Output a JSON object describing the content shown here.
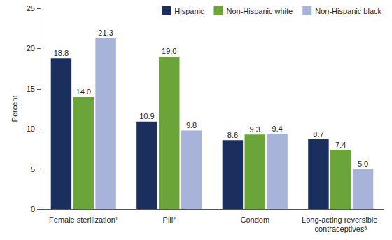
{
  "chart_data": {
    "type": "bar",
    "categories": [
      "Female sterilization¹",
      "Pill²",
      "Condom",
      "Long-acting reversible contraceptives³"
    ],
    "series": [
      {
        "name": "Hispanic",
        "color": "#1b2f5e",
        "values": [
          18.8,
          10.9,
          8.6,
          8.7
        ],
        "value_labels": [
          "18.8",
          "10.9",
          "8.6",
          "8.7"
        ]
      },
      {
        "name": "Non-Hispanic white",
        "color": "#6ba539",
        "values": [
          14.0,
          19.0,
          9.3,
          7.4
        ],
        "value_labels": [
          "14.0",
          "19.0",
          "9.3",
          "7.4"
        ]
      },
      {
        "name": "Non-Hispanic black",
        "color": "#a8b3da",
        "values": [
          21.3,
          9.8,
          9.4,
          5.0
        ],
        "value_labels": [
          "21.3",
          "9.8",
          "9.4",
          "5.0"
        ]
      }
    ],
    "y_label": "Percent",
    "ylim": [
      0,
      25
    ],
    "yticks": [
      0,
      5,
      10,
      15,
      20,
      25
    ],
    "grid": false,
    "legend": "top-right",
    "data_labels": true
  }
}
